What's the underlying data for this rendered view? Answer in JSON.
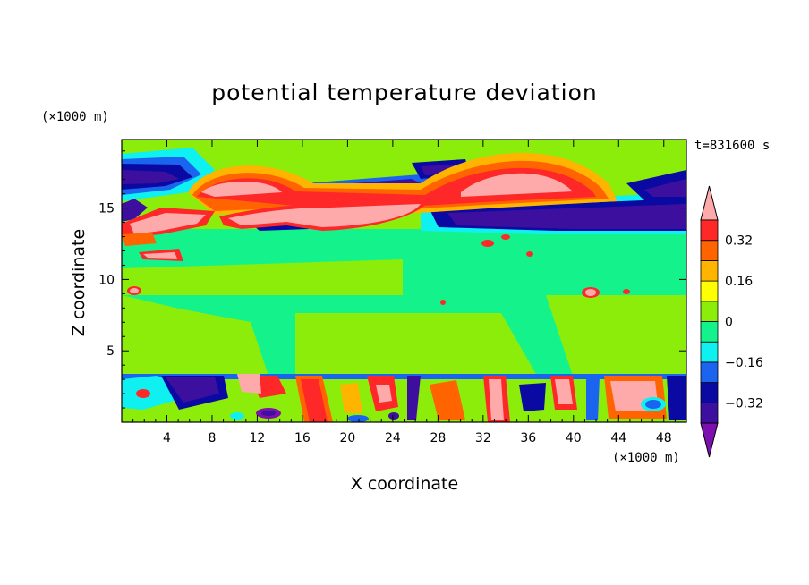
{
  "chart_data": {
    "type": "heatmap",
    "title": "potential temperature deviation",
    "time_label": "t=831600 s",
    "xlabel": "X coordinate",
    "ylabel": "Z coordinate",
    "x_unit": "(×1000 m)",
    "y_unit": "(×1000 m)",
    "xlim": [
      0,
      50
    ],
    "ylim": [
      0,
      19.8
    ],
    "x_ticks": [
      "4",
      "8",
      "12",
      "16",
      "20",
      "24",
      "28",
      "32",
      "36",
      "40",
      "44",
      "48"
    ],
    "y_ticks": [
      "5",
      "10",
      "15"
    ],
    "colorbar": {
      "tick_labels": [
        "0.32",
        "0.16",
        "0",
        "−0.16",
        "−0.32"
      ],
      "tick_values": [
        0.32,
        0.16,
        0,
        -0.16,
        -0.32
      ],
      "levels": [
        -0.4,
        -0.32,
        -0.24,
        -0.16,
        -0.08,
        0,
        0.08,
        0.16,
        0.24,
        0.32,
        0.4
      ],
      "colors": [
        "#7d0fb0",
        "#3d0f9e",
        "#0a0aa3",
        "#1a64f0",
        "#0ff0f0",
        "#14f28c",
        "#8ced0a",
        "#ffff00",
        "#ffb400",
        "#ff6400",
        "#ff2828",
        "#ffaaaa"
      ]
    },
    "fields": [
      {
        "range": "z 13.5-19.8 km",
        "description": "upper layer with banded mix of positive (pink/red) and negative (purple/blue) deviations"
      },
      {
        "range": "z 3.5-13.5 km",
        "description": "mid layer near zero (green), sparse small positive patches"
      },
      {
        "range": "z 0-3.5 km",
        "description": "lower layer with alternating strong positive and negative cells"
      }
    ]
  }
}
